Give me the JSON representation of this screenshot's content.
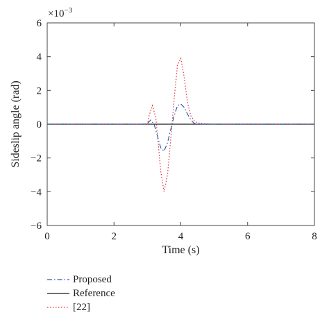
{
  "chart_data": {
    "type": "line",
    "xlabel": "Time (s)",
    "ylabel": "Sideslip angle (rad)",
    "y_exponent_label": "×10",
    "y_exponent_power": "−3",
    "xlim": [
      0,
      8
    ],
    "ylim": [
      -6,
      6
    ],
    "x_ticks": [
      "0",
      "2",
      "4",
      "6",
      "8"
    ],
    "y_ticks": [
      "−6",
      "−4",
      "−2",
      "0",
      "2",
      "4",
      "6"
    ],
    "grid": false,
    "legend_position": "bottom-left",
    "series": [
      {
        "name": "Proposed",
        "color": "#2a5db0",
        "style": "dash-dot",
        "x": [
          0,
          2.9,
          3.0,
          3.1,
          3.2,
          3.3,
          3.4,
          3.5,
          3.6,
          3.7,
          3.8,
          3.9,
          4.0,
          4.1,
          4.2,
          4.3,
          4.4,
          4.5,
          4.6,
          4.8,
          5.0,
          8.0
        ],
        "y": [
          0,
          0,
          0.05,
          0.25,
          0.0,
          -0.7,
          -1.4,
          -1.6,
          -1.1,
          -0.3,
          0.5,
          1.1,
          1.2,
          1.0,
          0.6,
          0.25,
          0.05,
          0.0,
          0.0,
          0.0,
          0.0,
          0.0
        ]
      },
      {
        "name": "Reference",
        "color": "#1a1a1a",
        "style": "solid",
        "x": [
          0,
          8
        ],
        "y": [
          0,
          0
        ]
      },
      {
        "name": "[22]",
        "color": "#e0303a",
        "style": "dotted",
        "x": [
          0,
          3.0,
          3.05,
          3.15,
          3.25,
          3.3,
          3.4,
          3.5,
          3.6,
          3.7,
          3.8,
          3.9,
          4.0,
          4.1,
          4.2,
          4.3,
          4.4,
          4.5,
          4.6,
          4.7,
          4.8,
          5.0,
          8.0
        ],
        "y": [
          0,
          0,
          0.5,
          1.1,
          0.4,
          -0.6,
          -2.8,
          -4.0,
          -3.0,
          -0.8,
          1.5,
          3.5,
          3.9,
          2.8,
          1.3,
          0.5,
          0.2,
          0.08,
          0.05,
          0.03,
          0.02,
          0.0,
          0.0
        ]
      }
    ]
  }
}
